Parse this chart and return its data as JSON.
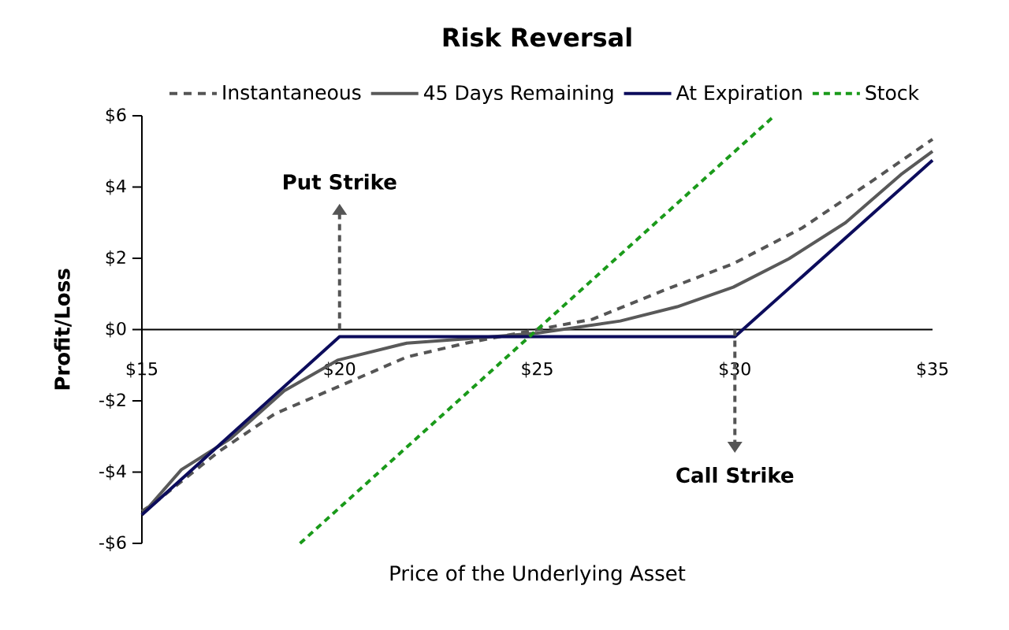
{
  "chart_data": {
    "type": "line",
    "title": "Risk Reversal",
    "xlabel": "Price of the Underlying Asset",
    "ylabel": "Profit/Loss",
    "xlim": [
      15,
      35
    ],
    "ylim": [
      -6,
      6
    ],
    "xticks": [
      {
        "value": 15,
        "label": "$15"
      },
      {
        "value": 20,
        "label": "$20"
      },
      {
        "value": 25,
        "label": "$25"
      },
      {
        "value": 30,
        "label": "$30"
      },
      {
        "value": 35,
        "label": "$35"
      }
    ],
    "yticks": [
      {
        "value": -6,
        "label": "-$6"
      },
      {
        "value": -4,
        "label": "-$4"
      },
      {
        "value": -2,
        "label": "-$2"
      },
      {
        "value": 0,
        "label": "$0"
      },
      {
        "value": 2,
        "label": "$2"
      },
      {
        "value": 4,
        "label": "$4"
      },
      {
        "value": 6,
        "label": "$6"
      }
    ],
    "legend": "top",
    "marker": "none",
    "series": [
      {
        "name": "Instantaneous",
        "color": "#555555",
        "line_style": "dashed",
        "x": [
          15,
          15.3,
          16.95,
          18.37,
          19.95,
          21.7,
          23.2,
          25,
          26.4,
          28.2,
          29.96,
          31.7,
          33.5,
          35
        ],
        "values": [
          -5.1,
          -4.88,
          -3.42,
          -2.36,
          -1.61,
          -0.77,
          -0.38,
          0.0,
          0.29,
          1.1,
          1.85,
          2.85,
          4.19,
          5.34
        ]
      },
      {
        "name": "45 Days Remaining",
        "color": "#595959",
        "line_style": "solid",
        "x": [
          15,
          16.0,
          17.23,
          18.6,
          19.95,
          21.7,
          23.2,
          25,
          27.1,
          28.54,
          29.96,
          31.37,
          32.8,
          34.2,
          35
        ],
        "values": [
          -5.2,
          -3.93,
          -3.07,
          -1.72,
          -0.86,
          -0.38,
          -0.26,
          -0.1,
          0.24,
          0.64,
          1.19,
          1.99,
          3.0,
          4.35,
          5.0
        ]
      },
      {
        "name": "At Expiration",
        "color": "#0c0c5c",
        "line_style": "solid",
        "x": [
          15,
          20,
          30,
          35
        ],
        "values": [
          -5.2,
          -0.2,
          -0.2,
          4.75
        ]
      },
      {
        "name": "Stock",
        "color": "#1a9a1a",
        "line_style": "dotted",
        "x": [
          19,
          31
        ],
        "values": [
          -6,
          6
        ]
      }
    ],
    "ref_lines": [
      {
        "axis": "x",
        "value": 20,
        "label": "Put Strike",
        "color": "#555555",
        "line_style": "dashed"
      },
      {
        "axis": "x",
        "value": 30,
        "label": "Call Strike",
        "color": "#555555",
        "line_style": "dashed"
      }
    ]
  }
}
